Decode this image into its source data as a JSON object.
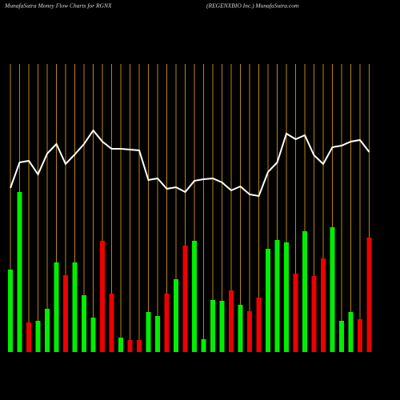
{
  "chart_data": {
    "type": "bar",
    "title": "MunafaSutra  Money Flow  Charts for RGNX",
    "subtitle": "(REGENXBIO Inc.) MunafaSutra.com",
    "categories": [
      null,
      null,
      null,
      null,
      null,
      null,
      null,
      null,
      null,
      null,
      null,
      null,
      null,
      null,
      null,
      null,
      null,
      null,
      null,
      null,
      null,
      null,
      null,
      null,
      null,
      null,
      null,
      null,
      null,
      null,
      null,
      null,
      null,
      null,
      null,
      null,
      null,
      null,
      null,
      null
    ],
    "values": [
      103,
      200,
      37,
      39,
      54,
      112,
      96,
      112,
      71,
      43,
      139,
      73,
      18,
      15,
      15,
      50,
      45,
      73,
      91,
      133,
      139,
      16,
      65,
      64,
      77,
      59,
      51,
      68,
      129,
      140,
      137,
      98,
      151,
      95,
      117,
      156,
      39,
      50,
      41,
      143
    ],
    "colors": [
      "#00ee00",
      "#00ee00",
      "#ee0000",
      "#00ee00",
      "#00ee00",
      "#00ee00",
      "#ee0000",
      "#00ee00",
      "#00ee00",
      "#00ee00",
      "#ee0000",
      "#ee0000",
      "#00ee00",
      "#ee0000",
      "#ee0000",
      "#00ee00",
      "#00ee00",
      "#ee0000",
      "#00ee00",
      "#ee0000",
      "#00ee00",
      "#00ee00",
      "#00ee00",
      "#00ee00",
      "#ee0000",
      "#00ee00",
      "#ee0000",
      "#ee0000",
      "#00ee00",
      "#00ee00",
      "#00ee00",
      "#ee0000",
      "#00ee00",
      "#ee0000",
      "#ee0000",
      "#00ee00",
      "#00ee00",
      "#00ee00",
      "#ee0000",
      "#ee0000"
    ],
    "line_values": [
      205,
      237,
      239,
      222,
      248,
      260,
      235,
      247,
      260,
      277,
      263,
      254,
      254,
      253,
      252,
      215,
      217,
      204,
      206,
      200,
      214,
      216,
      217,
      212,
      202,
      207,
      197,
      195,
      225,
      237,
      273,
      266,
      271,
      246,
      235,
      256,
      258,
      263,
      265,
      250
    ],
    "line_color": "#ffffff",
    "grid_color": "#b8860b",
    "grid": true,
    "ylim": [
      0,
      380
    ]
  }
}
